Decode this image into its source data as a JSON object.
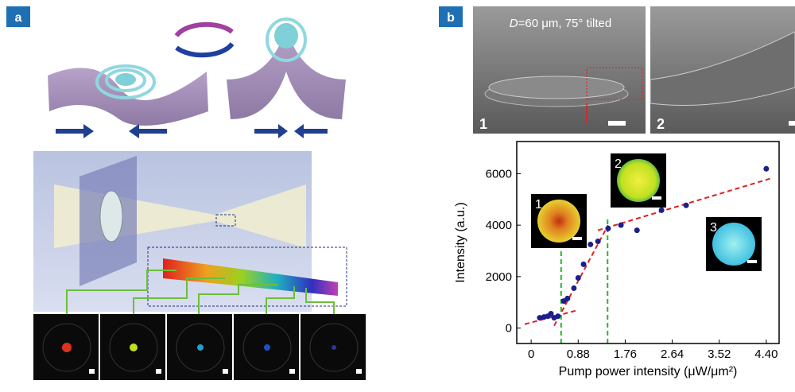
{
  "panels": {
    "a": {
      "label": "a"
    },
    "b": {
      "label": "b",
      "sem_caption_var": "D",
      "sem_caption_rest": "=60 μm, 75° tilted",
      "sem_1": "1",
      "sem_2": "2"
    }
  },
  "chart_data": {
    "type": "scatter",
    "x_label": "Pump power intensity (μW/μm²)",
    "y_label": "Intensity (a.u.)",
    "color": "#1a1f8c",
    "x": [
      0.16,
      0.24,
      0.31,
      0.37,
      0.43,
      0.5,
      0.61,
      0.68,
      0.8,
      0.88,
      0.98,
      1.11,
      1.25,
      1.44,
      1.68,
      1.98,
      2.44,
      2.9,
      4.4
    ],
    "values": [
      400,
      430,
      460,
      560,
      400,
      460,
      1050,
      1150,
      1550,
      1950,
      2480,
      3250,
      3370,
      3870,
      4000,
      3800,
      4580,
      4770,
      6190
    ],
    "xlim": [
      -0.27,
      4.64
    ],
    "ylim": [
      -600,
      7250
    ],
    "xticks": [
      0,
      0.88,
      1.76,
      2.64,
      3.52,
      {
        "value": 4.4,
        "label": "4.40"
      }
    ],
    "yticks": [
      0,
      2000,
      4000,
      6000
    ],
    "fit_color": "#e02020",
    "fit_lines": [
      {
        "x": [
          -0.12,
          0.88
        ],
        "y": [
          150,
          700
        ]
      },
      {
        "x": [
          0.43,
          1.44
        ],
        "y": [
          90,
          4000
        ]
      },
      {
        "x": [
          1.25,
          4.49
        ],
        "y": [
          3800,
          5820
        ]
      }
    ],
    "threshold_color": "#22bb22",
    "thresholds": [
      0.56,
      1.43
    ],
    "insets": [
      "1",
      "2",
      "3"
    ]
  }
}
